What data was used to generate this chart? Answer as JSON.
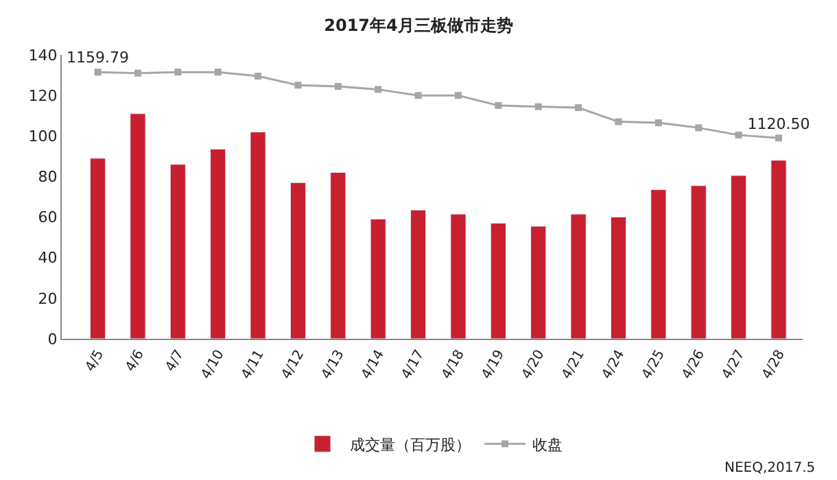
{
  "chart_data": {
    "type": "bar",
    "title": "2017年4月三板做市走势",
    "categories": [
      "4/5",
      "4/6",
      "4/7",
      "4/10",
      "4/11",
      "4/12",
      "4/13",
      "4/14",
      "4/17",
      "4/18",
      "4/19",
      "4/20",
      "4/21",
      "4/24",
      "4/25",
      "4/26",
      "4/27",
      "4/28"
    ],
    "series": [
      {
        "name": "成交量（百万股）",
        "color": "#c8202f",
        "values": [
          89,
          111,
          86,
          93.5,
          102,
          77,
          82,
          59,
          63.5,
          61.5,
          57,
          55.5,
          61.5,
          60,
          73.5,
          75.5,
          80.5,
          88
        ]
      },
      {
        "name": "收盘",
        "type": "line",
        "axis": "y2",
        "color": "#a6a6a6",
        "marker": "square",
        "values": [
          1159.79,
          1159.2,
          1159.8,
          1159.8,
          1157.4,
          1152.0,
          1151.3,
          1149.5,
          1145.9,
          1145.9,
          1139.9,
          1139.2,
          1138.6,
          1130.2,
          1129.6,
          1126.6,
          1122.3,
          1120.5
        ],
        "value_labels": [
          "1159.79",
          null,
          null,
          null,
          null,
          null,
          null,
          null,
          null,
          null,
          null,
          null,
          null,
          null,
          null,
          null,
          null,
          "1120.50"
        ]
      }
    ],
    "ylim": [
      0,
      140
    ],
    "yticks": [
      0,
      20,
      40,
      60,
      80,
      100,
      120,
      140
    ],
    "y2lim": [
      1000.8,
      1170.1
    ],
    "legend": "bottom",
    "annotations": [
      "NEEQ,2017.5"
    ]
  }
}
